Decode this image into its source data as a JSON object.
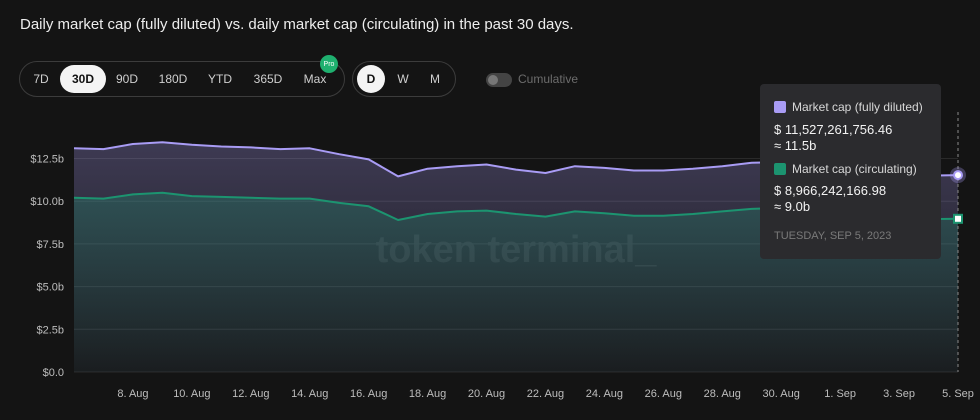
{
  "title": "Daily market cap (fully diluted) vs. daily market cap (circulating) in the past 30 days.",
  "range_buttons": [
    {
      "label": "7D",
      "active": false
    },
    {
      "label": "30D",
      "active": true
    },
    {
      "label": "90D",
      "active": false
    },
    {
      "label": "180D",
      "active": false
    },
    {
      "label": "YTD",
      "active": false
    },
    {
      "label": "365D",
      "active": false
    },
    {
      "label": "Max",
      "active": false
    }
  ],
  "pro_badge": "Pro",
  "granularity_buttons": [
    {
      "label": "D",
      "active": true
    },
    {
      "label": "W",
      "active": false
    },
    {
      "label": "M",
      "active": false
    }
  ],
  "cumulative": {
    "label": "Cumulative",
    "on": false
  },
  "watermark": "token terminal_",
  "tooltip": {
    "items": [
      {
        "name": "Market cap (fully diluted)",
        "color": "#a99cf5",
        "value": "$ 11,527,261,756.46",
        "approx": "≈ 11.5b"
      },
      {
        "name": "Market cap (circulating)",
        "color": "#1c9470",
        "value": "$ 8,966,242,166.98",
        "approx": "≈ 9.0b"
      }
    ],
    "date": "TUESDAY, SEP 5, 2023"
  },
  "colors": {
    "fully_diluted": "#a99cf5",
    "circulating": "#1c9470",
    "grid": "#2a2a2a",
    "axis_text": "#bdbdbd"
  },
  "chart_data": {
    "type": "area",
    "x": [
      "Aug 6",
      "Aug 7",
      "Aug 8",
      "Aug 9",
      "Aug 10",
      "Aug 11",
      "Aug 12",
      "Aug 13",
      "Aug 14",
      "Aug 15",
      "Aug 16",
      "Aug 17",
      "Aug 18",
      "Aug 19",
      "Aug 20",
      "Aug 21",
      "Aug 22",
      "Aug 23",
      "Aug 24",
      "Aug 25",
      "Aug 26",
      "Aug 27",
      "Aug 28",
      "Aug 29",
      "Aug 30",
      "Aug 31",
      "Sep 1",
      "Sep 2",
      "Sep 3",
      "Sep 4",
      "Sep 5"
    ],
    "x_tick_labels": [
      {
        "label": "8. Aug",
        "x": "Aug 8"
      },
      {
        "label": "10. Aug",
        "x": "Aug 10"
      },
      {
        "label": "12. Aug",
        "x": "Aug 12"
      },
      {
        "label": "14. Aug",
        "x": "Aug 14"
      },
      {
        "label": "16. Aug",
        "x": "Aug 16"
      },
      {
        "label": "18. Aug",
        "x": "Aug 18"
      },
      {
        "label": "20. Aug",
        "x": "Aug 20"
      },
      {
        "label": "22. Aug",
        "x": "Aug 22"
      },
      {
        "label": "24. Aug",
        "x": "Aug 24"
      },
      {
        "label": "26. Aug",
        "x": "Aug 26"
      },
      {
        "label": "28. Aug",
        "x": "Aug 28"
      },
      {
        "label": "30. Aug",
        "x": "Aug 30"
      },
      {
        "label": "1. Sep",
        "x": "Sep 1"
      },
      {
        "label": "3. Sep",
        "x": "Sep 3"
      },
      {
        "label": "5. Sep",
        "x": "Sep 5"
      }
    ],
    "y_ticks": [
      0,
      2.5,
      5.0,
      7.5,
      10.0,
      12.5
    ],
    "y_tick_labels": [
      "$0.0",
      "$2.5b",
      "$5.0b",
      "$7.5b",
      "$10.0b",
      "$12.5b"
    ],
    "ylim": [
      0,
      12.5
    ],
    "series": [
      {
        "name": "Market cap (fully diluted)",
        "values": [
          13.1,
          13.05,
          13.35,
          13.45,
          13.3,
          13.2,
          13.15,
          13.05,
          13.1,
          12.75,
          12.45,
          11.45,
          11.9,
          12.05,
          12.15,
          11.85,
          11.65,
          12.05,
          11.95,
          11.8,
          11.8,
          11.9,
          12.05,
          12.25,
          12.3,
          12.2,
          12.1,
          11.95,
          11.8,
          11.5,
          11.53
        ]
      },
      {
        "name": "Market cap (circulating)",
        "values": [
          10.2,
          10.15,
          10.4,
          10.5,
          10.3,
          10.25,
          10.2,
          10.15,
          10.15,
          9.9,
          9.7,
          8.9,
          9.25,
          9.4,
          9.45,
          9.25,
          9.1,
          9.4,
          9.3,
          9.15,
          9.15,
          9.25,
          9.4,
          9.55,
          9.6,
          9.55,
          9.45,
          9.3,
          9.15,
          8.95,
          8.97
        ]
      }
    ],
    "grid": true,
    "legend": "tooltip"
  }
}
